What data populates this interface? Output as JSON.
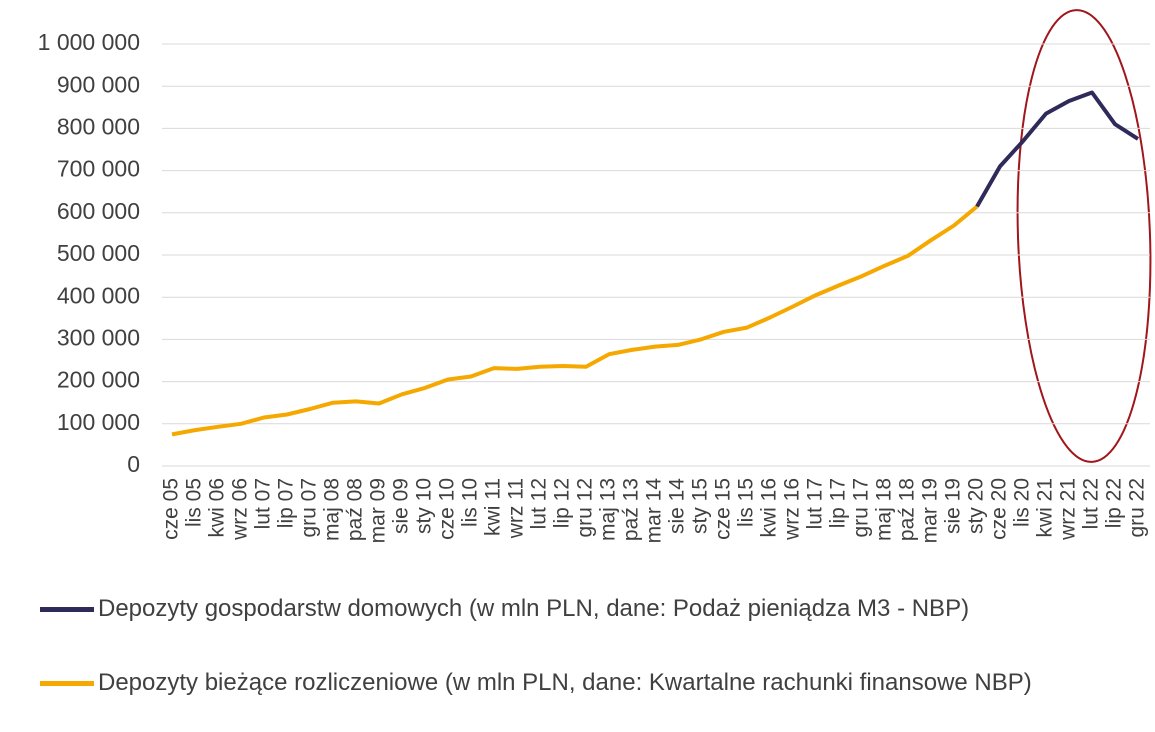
{
  "chart_data": {
    "type": "line",
    "categories": [
      "cze 05",
      "lis 05",
      "kwi 06",
      "wrz 06",
      "lut 07",
      "lip 07",
      "gru 07",
      "maj 08",
      "paź 08",
      "mar 09",
      "sie 09",
      "sty 10",
      "cze 10",
      "lis 10",
      "kwi 11",
      "wrz 11",
      "lut 12",
      "lip 12",
      "gru 12",
      "maj 13",
      "paź 13",
      "mar 14",
      "sie 14",
      "sty 15",
      "cze 15",
      "lis 15",
      "kwi 16",
      "wrz 16",
      "lut 17",
      "lip 17",
      "gru 17",
      "maj 18",
      "paź 18",
      "mar 19",
      "sie 19",
      "sty 20",
      "cze 20",
      "lis 20",
      "kwi 21",
      "wrz 21",
      "lut 22",
      "lip 22",
      "gru 22"
    ],
    "series": [
      {
        "name": "Depozyty gospodarstw domowych (w mln PLN, dane: Podaż pieniądza M3 - NBP)",
        "color": "#2e2a5a",
        "values": [
          null,
          null,
          null,
          null,
          null,
          null,
          null,
          null,
          null,
          null,
          null,
          null,
          null,
          null,
          null,
          null,
          null,
          null,
          null,
          null,
          null,
          null,
          null,
          null,
          null,
          null,
          null,
          null,
          null,
          null,
          null,
          null,
          null,
          null,
          null,
          615000,
          710000,
          770000,
          835000,
          865000,
          885000,
          810000,
          775000
        ]
      },
      {
        "name": "Depozyty bieżące rozliczeniowe (w mln PLN, dane: Kwartalne rachunki finansowe NBP)",
        "color": "#f5a800",
        "values": [
          75000,
          85000,
          93000,
          100000,
          115000,
          122000,
          135000,
          150000,
          153000,
          148000,
          170000,
          185000,
          205000,
          212000,
          232000,
          230000,
          235000,
          237000,
          235000,
          265000,
          275000,
          283000,
          287000,
          300000,
          318000,
          328000,
          352000,
          378000,
          405000,
          428000,
          450000,
          475000,
          498000,
          535000,
          570000,
          615000,
          null,
          null,
          null,
          null,
          null,
          null,
          null
        ]
      }
    ],
    "ylim": [
      0,
      1000000
    ],
    "yticks": [
      0,
      {
        "value": 100000,
        "label": "100 000"
      },
      {
        "value": 200000,
        "label": "200 000"
      },
      {
        "value": 300000,
        "label": "300 000"
      },
      {
        "value": 400000,
        "label": "400 000"
      },
      {
        "value": 500000,
        "label": "500 000"
      },
      {
        "value": 600000,
        "label": "600 000"
      },
      {
        "value": 700000,
        "label": "700 000"
      },
      {
        "value": 800000,
        "label": "800 000"
      },
      {
        "value": 900000,
        "label": "900 000"
      },
      {
        "value": 1000000,
        "label": "1 000 000"
      }
    ],
    "grid": true
  }
}
